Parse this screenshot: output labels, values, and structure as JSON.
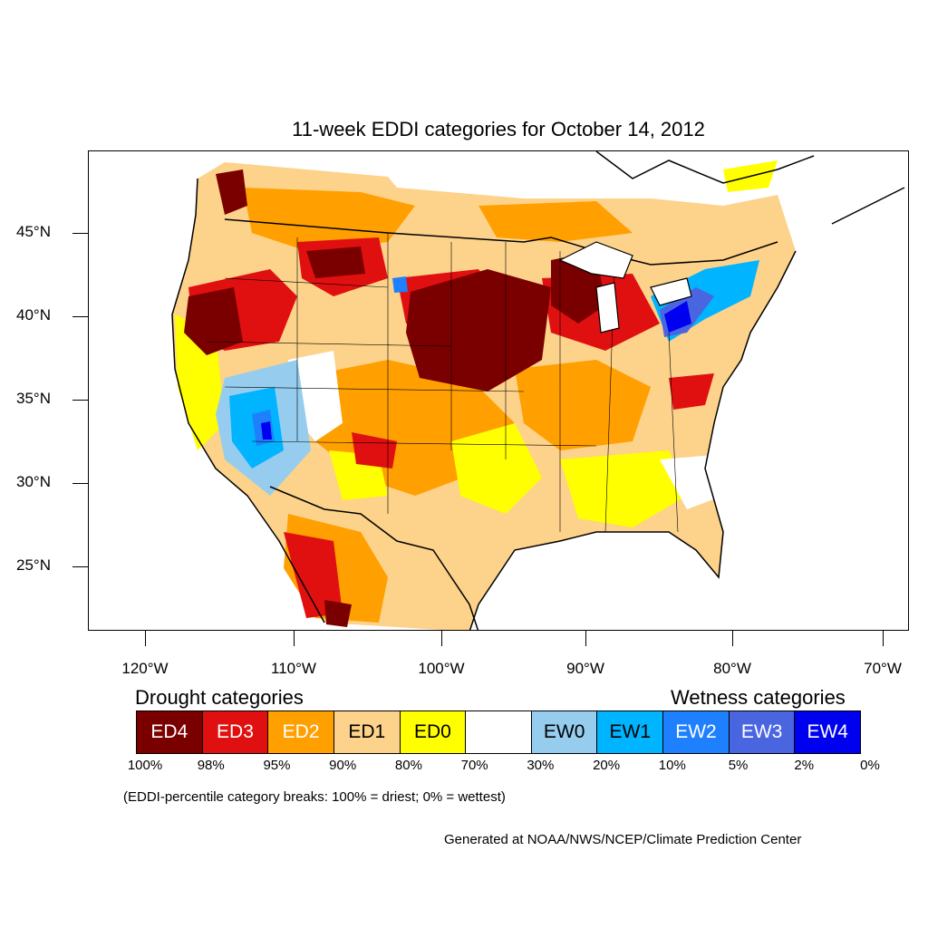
{
  "title": "11-week EDDI categories for October 14, 2012",
  "lat_labels": [
    "45°N",
    "40°N",
    "35°N",
    "30°N",
    "25°N"
  ],
  "lon_labels": [
    "120°W",
    "110°W",
    "100°W",
    "90°W",
    "80°W",
    "70°W"
  ],
  "legend": {
    "drought_heading": "Drought categories",
    "wetness_heading": "Wetness categories",
    "categories": [
      {
        "label": "ED4",
        "color": "#7a0000",
        "text_color": "#ffffff"
      },
      {
        "label": "ED3",
        "color": "#e01010",
        "text_color": "#ffffff"
      },
      {
        "label": "ED2",
        "color": "#ff9f00",
        "text_color": "#ffffff"
      },
      {
        "label": "ED1",
        "color": "#fdd28a",
        "text_color": "#000000"
      },
      {
        "label": "ED0",
        "color": "#ffff00",
        "text_color": "#000000"
      },
      {
        "label": "",
        "color": "#ffffff",
        "text_color": "#000000"
      },
      {
        "label": "EW0",
        "color": "#96cdee",
        "text_color": "#000000"
      },
      {
        "label": "EW1",
        "color": "#00b4ff",
        "text_color": "#000000"
      },
      {
        "label": "EW2",
        "color": "#1e80ff",
        "text_color": "#ffffff"
      },
      {
        "label": "EW3",
        "color": "#4a65e0",
        "text_color": "#ffffff"
      },
      {
        "label": "EW4",
        "color": "#0000f0",
        "text_color": "#ffffff"
      }
    ],
    "breaks": [
      "100%",
      "98%",
      "95%",
      "90%",
      "80%",
      "70%",
      "30%",
      "20%",
      "10%",
      "5%",
      "2%",
      "0%"
    ]
  },
  "note": "(EDDI-percentile category breaks: 100% = driest; 0% = wettest)",
  "credit": "Generated at NOAA/NWS/NCEP/Climate Prediction Center"
}
